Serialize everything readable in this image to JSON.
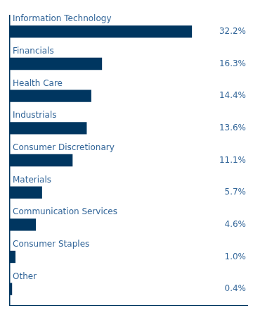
{
  "chart_data": {
    "type": "bar",
    "orientation": "horizontal",
    "categories": [
      "Information Technology",
      "Financials",
      "Health Care",
      "Industrials",
      "Consumer Discretionary",
      "Materials",
      "Communication Services",
      "Consumer Staples",
      "Other"
    ],
    "values": [
      32.2,
      16.3,
      14.4,
      13.6,
      11.1,
      5.7,
      4.6,
      1.0,
      0.4
    ],
    "value_labels": [
      "32.2%",
      "16.3%",
      "14.4%",
      "13.6%",
      "11.1%",
      "5.7%",
      "4.6%",
      "1.0%",
      "0.4%"
    ],
    "data_labels": true,
    "color": "#003660",
    "xlim": [
      0,
      42
    ],
    "tick_labels": false,
    "grid": false
  }
}
